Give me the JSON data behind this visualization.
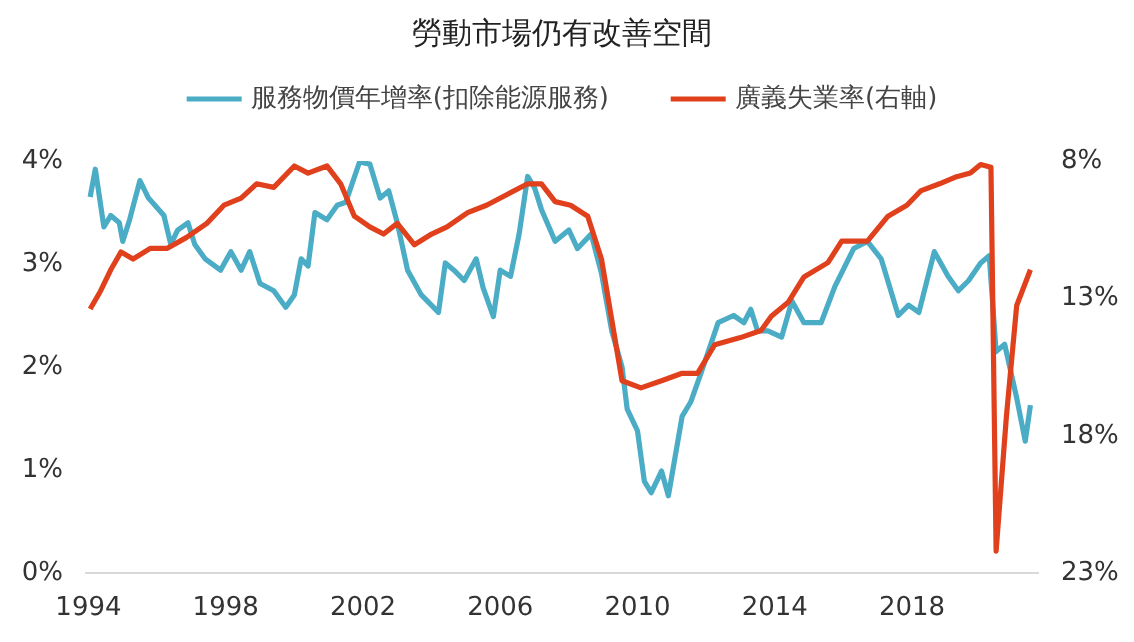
{
  "chart_data": {
    "type": "line",
    "title": "勞動市場仍有改善空間",
    "legend": "top",
    "grid": false,
    "marker": "none",
    "line_style": "solid",
    "xlim": [
      1993.9,
      2021.7
    ],
    "xticks": [
      1994,
      1998,
      2002,
      2006,
      2010,
      2014,
      2018
    ],
    "ylim": [
      0,
      4
    ],
    "yticks": [
      {
        "value": 0,
        "label": "0%"
      },
      {
        "value": 1,
        "label": "1%"
      },
      {
        "value": 2,
        "label": "2%"
      },
      {
        "value": 3,
        "label": "3%"
      },
      {
        "value": 4,
        "label": "4%"
      }
    ],
    "y2lim": [
      23,
      8
    ],
    "y2ticks": [
      {
        "value": 8,
        "label": "8%"
      },
      {
        "value": 13,
        "label": "13%"
      },
      {
        "value": 18,
        "label": "18%"
      },
      {
        "value": 23,
        "label": "23%"
      }
    ],
    "series": [
      {
        "name": "服務物價年增率(扣除能源服務)",
        "color": "#4bacc6",
        "x": [
          1994.05,
          1994.2,
          1994.45,
          1994.65,
          1994.9,
          1995.0,
          1995.2,
          1995.5,
          1995.75,
          1996.2,
          1996.4,
          1996.6,
          1996.9,
          1997.1,
          1997.4,
          1997.85,
          1998.15,
          1998.45,
          1998.7,
          1999.0,
          1999.4,
          1999.75,
          2000.0,
          2000.2,
          2000.4,
          2000.6,
          2000.95,
          2001.25,
          2001.5,
          2001.9,
          2002.2,
          2002.5,
          2002.75,
          2003.0,
          2003.3,
          2003.7,
          2004.2,
          2004.4,
          2004.65,
          2004.95,
          2005.3,
          2005.5,
          2005.8,
          2006.0,
          2006.3,
          2006.55,
          2006.8,
          2007.0,
          2007.2,
          2007.6,
          2008.0,
          2008.25,
          2008.65,
          2008.95,
          2009.25,
          2009.55,
          2009.7,
          2010.0,
          2010.2,
          2010.4,
          2010.7,
          2010.9,
          2011.3,
          2011.55,
          2011.85,
          2012.35,
          2012.8,
          2013.1,
          2013.3,
          2013.5,
          2013.8,
          2014.2,
          2014.5,
          2014.85,
          2015.35,
          2015.75,
          2016.3,
          2016.7,
          2017.1,
          2017.6,
          2017.9,
          2018.2,
          2018.65,
          2019.05,
          2019.35,
          2019.65,
          2020.0,
          2020.25,
          2020.45,
          2020.7,
          2021.05,
          2021.3,
          2021.45
        ],
        "values": [
          3.65,
          3.92,
          3.36,
          3.47,
          3.4,
          3.22,
          3.43,
          3.81,
          3.64,
          3.47,
          3.19,
          3.33,
          3.4,
          3.19,
          3.05,
          2.94,
          3.12,
          2.94,
          3.12,
          2.81,
          2.74,
          2.58,
          2.7,
          3.05,
          2.98,
          3.5,
          3.43,
          3.57,
          3.6,
          3.99,
          3.97,
          3.64,
          3.71,
          3.4,
          2.94,
          2.7,
          2.53,
          3.01,
          2.94,
          2.84,
          3.05,
          2.77,
          2.49,
          2.94,
          2.88,
          3.29,
          3.85,
          3.74,
          3.53,
          3.22,
          3.33,
          3.15,
          3.29,
          2.91,
          2.35,
          2.0,
          1.59,
          1.38,
          0.89,
          0.78,
          0.99,
          0.75,
          1.52,
          1.66,
          1.94,
          2.43,
          2.5,
          2.43,
          2.56,
          2.35,
          2.35,
          2.29,
          2.64,
          2.43,
          2.43,
          2.78,
          3.15,
          3.22,
          3.05,
          2.5,
          2.6,
          2.53,
          3.12,
          2.88,
          2.74,
          2.84,
          3.01,
          3.08,
          2.15,
          2.22,
          1.7,
          1.28,
          1.63
        ]
      },
      {
        "name": "廣義失業率(右軸)",
        "color": "#e0401c",
        "axis": "y2",
        "x": [
          1994.05,
          1994.35,
          1994.65,
          1994.95,
          1995.3,
          1995.8,
          1996.3,
          1996.85,
          1997.45,
          1997.95,
          1998.45,
          1998.9,
          1999.4,
          2000.0,
          2000.4,
          2000.95,
          2001.35,
          2001.75,
          2002.2,
          2002.6,
          2003.0,
          2003.5,
          2004.0,
          2004.45,
          2005.05,
          2005.6,
          2006.2,
          2006.8,
          2007.2,
          2007.6,
          2008.05,
          2008.55,
          2008.95,
          2009.55,
          2010.1,
          2010.7,
          2011.3,
          2011.75,
          2012.25,
          2013.0,
          2013.6,
          2013.9,
          2014.4,
          2014.85,
          2015.55,
          2015.95,
          2016.7,
          2017.3,
          2017.85,
          2018.25,
          2018.8,
          2019.3,
          2019.7,
          2020.0,
          2020.3,
          2020.45,
          2020.75,
          2021.05,
          2021.45
        ],
        "values": [
          13.39,
          12.74,
          11.96,
          11.31,
          11.57,
          11.18,
          11.18,
          10.79,
          10.27,
          9.61,
          9.35,
          8.83,
          8.96,
          8.18,
          8.44,
          8.18,
          8.83,
          10.01,
          10.4,
          10.66,
          10.27,
          11.05,
          10.66,
          10.4,
          9.88,
          9.61,
          9.22,
          8.83,
          8.83,
          9.48,
          9.61,
          10.01,
          11.57,
          16.0,
          16.26,
          16.0,
          15.73,
          15.73,
          14.69,
          14.43,
          14.17,
          13.65,
          13.13,
          12.22,
          11.7,
          10.92,
          10.92,
          10.01,
          9.61,
          9.09,
          8.83,
          8.57,
          8.44,
          8.13,
          8.23,
          22.2,
          17.3,
          13.26,
          11.96
        ]
      }
    ]
  }
}
